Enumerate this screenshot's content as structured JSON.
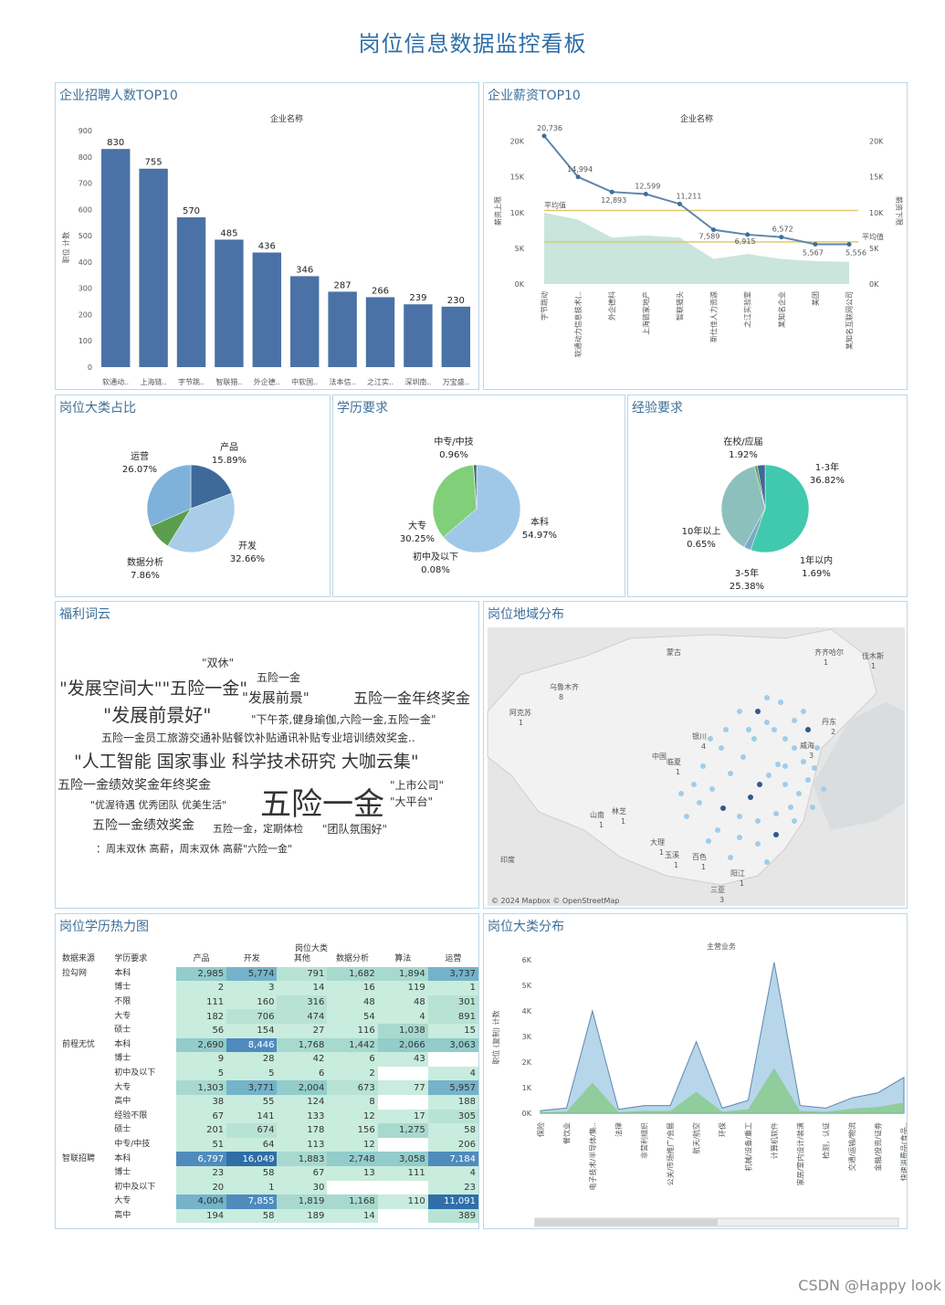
{
  "title": "岗位信息数据监控看板",
  "watermark": "CSDN @Happy look",
  "panels": {
    "top_companies": "企业招聘人数TOP10",
    "salary": "企业薪资TOP10",
    "category_share": "岗位大类占比",
    "education": "学历要求",
    "experience": "经验要求",
    "wordcloud": "福利词云",
    "map": "岗位地域分布",
    "heatmap": "岗位学历热力图",
    "distribution": "岗位大类分布"
  },
  "chart_data": [
    {
      "id": "top_companies",
      "type": "bar",
      "title": "企业招聘人数TOP10",
      "header": "企业名称",
      "ylabel": "职位 计数",
      "ylim": [
        0,
        900
      ],
      "yticks": [
        "900",
        "800",
        "700",
        "600",
        "500",
        "400",
        "300",
        "200",
        "100",
        "0"
      ],
      "categories": [
        "软通动..",
        "上海链..",
        "字节跳..",
        "智联猎..",
        "外企德..",
        "中软国..",
        "法本信..",
        "之江实..",
        "深圳南..",
        "万宝盛.."
      ],
      "values": [
        830,
        755,
        570,
        485,
        436,
        346,
        287,
        266,
        239,
        230
      ],
      "value_labels": [
        "830",
        "755",
        "570",
        "485",
        "436",
        "346",
        "287",
        "266",
        "239",
        "230"
      ]
    },
    {
      "id": "salary",
      "type": "line",
      "title": "企业薪资TOP10",
      "header": "企业名称",
      "ylabel": "薪资上限",
      "ylabel_right": "薪资下限",
      "ylim": [
        0,
        22000
      ],
      "yticks": [
        "20K",
        "15K",
        "10K",
        "5K",
        "0K"
      ],
      "yticks_right": [
        "20K",
        "15K",
        "10K",
        "5K",
        "0K"
      ],
      "categories": [
        "字节跳动",
        "软通动力信息技术(..",
        "外企德科",
        "上海链家地产",
        "智联猎头",
        "新仕佳人力资源",
        "之江实验室",
        "某知名企业",
        "美团",
        "某知名互联网公司"
      ],
      "series": [
        {
          "name": "薪资上限",
          "values": [
            20736,
            14994,
            12893,
            12599,
            11211,
            7589,
            6915,
            6572,
            5567,
            5556
          ],
          "labels": [
            "20,736",
            "14,994",
            "12,893",
            "12,599",
            "11,211",
            "7,589",
            "6,915",
            "6,572",
            "5,567",
            "5,556"
          ]
        },
        {
          "name": "薪资下限",
          "values": [
            10000,
            9000,
            6500,
            6800,
            6500,
            3500,
            4200,
            3500,
            3200,
            3100
          ]
        }
      ],
      "reference_lines": [
        {
          "label": "平均值",
          "value": 10300
        },
        {
          "label": "平均值",
          "value": 5900
        }
      ]
    },
    {
      "id": "category_share",
      "type": "pie",
      "title": "岗位大类占比",
      "labels": [
        "产品",
        "开发",
        "数据分析",
        "运营"
      ],
      "values": [
        15.89,
        32.66,
        7.86,
        26.07
      ],
      "value_labels": [
        "15.89%",
        "32.66%",
        "7.86%",
        "26.07%"
      ]
    },
    {
      "id": "education",
      "type": "pie",
      "title": "学历要求",
      "labels": [
        "本科",
        "大专",
        "初中及以下",
        "中专/中技"
      ],
      "values": [
        54.97,
        30.25,
        0.08,
        0.96
      ],
      "value_labels": [
        "54.97%",
        "30.25%",
        "0.08%",
        "0.96%"
      ]
    },
    {
      "id": "experience",
      "type": "pie",
      "title": "经验要求",
      "labels": [
        "1-3年",
        "1年以内",
        "3-5年",
        "10年以上",
        "在校/应届"
      ],
      "values": [
        36.82,
        1.69,
        25.38,
        0.65,
        1.92
      ],
      "value_labels": [
        "36.82%",
        "1.69%",
        "25.38%",
        "0.65%",
        "1.92%"
      ]
    },
    {
      "id": "distribution",
      "type": "area",
      "title": "岗位大类分布",
      "header": "主营业务",
      "ylabel": "职位 (复制) 计数",
      "ylim": [
        0,
        6000
      ],
      "yticks": [
        "6K",
        "5K",
        "4K",
        "3K",
        "2K",
        "1K",
        "0K"
      ],
      "categories": [
        "保险",
        "餐饮业",
        "电子技术/半导体/集..",
        "法律",
        "非营利组织",
        "公关/市场推广/会展",
        "航天/航空",
        "环保",
        "机械/设备/重工",
        "计算机软件",
        "家居/室内设计/装潢",
        "检测，认证",
        "交通/运输/物流",
        "金融/投资/证券",
        "快速消费品(食品.."
      ],
      "x_labels": [
        "保险",
        "餐饮业",
        "电子技术/半导体/集..",
        "法律",
        "非营利组织",
        "公关/市场推广/会展",
        "航天/航空",
        "环保",
        "机械/设备/重工",
        "计算机软件",
        "家居/室内设计/装潢",
        "检测，认证",
        "交通/运输/物流",
        "金融/投资/证券",
        "快速消费品(食品.."
      ],
      "values": [
        100,
        200,
        4000,
        150,
        300,
        300,
        2800,
        200,
        500,
        5900,
        300,
        200,
        600,
        800,
        1400
      ]
    }
  ],
  "wordcloud": [
    {
      "text": "\"双休\"",
      "color": "#bfe0d6"
    },
    {
      "text": "\"发展空间大\"\"五险一金\"",
      "color": "#8ec4b6"
    },
    {
      "text": "五险一金",
      "color": "#bfe0d6"
    },
    {
      "text": "\"发展前景\"",
      "color": "#a9d2c5"
    },
    {
      "text": "五险一金年终奖金",
      "color": "#9bcab9"
    },
    {
      "text": "\"发展前景好\"",
      "color": "#7fb7a8"
    },
    {
      "text": "\"下午茶,健身瑜伽,六险一金,五险一金\"",
      "color": "#c6e3da"
    },
    {
      "text": "五险一金员工旅游交通补贴餐饮补贴通讯补贴专业培训绩效奖金..",
      "color": "#c6e3da"
    },
    {
      "text": "\"人工智能 国家事业 科学技术研究 大咖云集\"",
      "color": "#6fa99c"
    },
    {
      "text": "五险一金绩效奖金年终奖金",
      "color": "#a9d2c5"
    },
    {
      "text": "\"上市公司\"",
      "color": "#c6e3da"
    },
    {
      "text": "\"优渥待遇 优秀团队 优美生活\"",
      "color": "#c6e3da"
    },
    {
      "text": "五险一金",
      "color": "#3d6f7a"
    },
    {
      "text": "\"大平台\"",
      "color": "#bfe0d6"
    },
    {
      "text": "五险一金绩效奖金",
      "color": "#a9d2c5"
    },
    {
      "text": "五险一金，定期体检",
      "color": "#c6e3da"
    },
    {
      "text": "\"团队氛围好\"",
      "color": "#c6e3da"
    },
    {
      "text": "：周末双休 高薪，周末双休 高薪\"六险一金\"",
      "color": "#c6e3da"
    }
  ],
  "map": {
    "attribution": "© 2024 Mapbox © OpenStreetMap",
    "regions": [
      {
        "name": "蒙古"
      },
      {
        "name": "中国"
      },
      {
        "name": "印度"
      }
    ],
    "cities": [
      {
        "name": "齐齐哈尔",
        "count": "1"
      },
      {
        "name": "佳木斯",
        "count": "1"
      },
      {
        "name": "乌鲁木齐",
        "count": "8"
      },
      {
        "name": "阿克苏",
        "count": "1"
      },
      {
        "name": "丹东",
        "count": "2"
      },
      {
        "name": "银川",
        "count": "4"
      },
      {
        "name": "威海",
        "count": "3"
      },
      {
        "name": "临夏",
        "count": "1"
      },
      {
        "name": "山南",
        "count": "1"
      },
      {
        "name": "林芝",
        "count": "1"
      },
      {
        "name": "大理",
        "count": "1"
      },
      {
        "name": "玉溪",
        "count": "1"
      },
      {
        "name": "百色",
        "count": "1"
      },
      {
        "name": "阳江",
        "count": "1"
      },
      {
        "name": "三亚",
        "count": "3"
      }
    ]
  },
  "heatmap": {
    "group_header": "岗位大类",
    "columns": [
      "数据来源",
      "学历要求",
      "产品",
      "开发",
      "其他",
      "数据分析",
      "算法",
      "运营"
    ],
    "rows": [
      {
        "source": "拉勾网",
        "edu": "本科",
        "vals": [
          "2,985",
          "5,774",
          "791",
          "1,682",
          "1,894",
          "3,737"
        ]
      },
      {
        "source": "",
        "edu": "博士",
        "vals": [
          "2",
          "3",
          "14",
          "16",
          "119",
          "1"
        ]
      },
      {
        "source": "",
        "edu": "不限",
        "vals": [
          "111",
          "160",
          "316",
          "48",
          "48",
          "301"
        ]
      },
      {
        "source": "",
        "edu": "大专",
        "vals": [
          "182",
          "706",
          "474",
          "54",
          "4",
          "891"
        ]
      },
      {
        "source": "",
        "edu": "硕士",
        "vals": [
          "56",
          "154",
          "27",
          "116",
          "1,038",
          "15"
        ]
      },
      {
        "source": "前程无忧",
        "edu": "本科",
        "vals": [
          "2,690",
          "8,446",
          "1,768",
          "1,442",
          "2,066",
          "3,063"
        ]
      },
      {
        "source": "",
        "edu": "博士",
        "vals": [
          "9",
          "28",
          "42",
          "6",
          "43",
          ""
        ]
      },
      {
        "source": "",
        "edu": "初中及以下",
        "vals": [
          "5",
          "5",
          "6",
          "2",
          "",
          "4"
        ]
      },
      {
        "source": "",
        "edu": "大专",
        "vals": [
          "1,303",
          "3,771",
          "2,004",
          "673",
          "77",
          "5,957"
        ]
      },
      {
        "source": "",
        "edu": "高中",
        "vals": [
          "38",
          "55",
          "124",
          "8",
          "",
          "188"
        ]
      },
      {
        "source": "",
        "edu": "经验不限",
        "vals": [
          "67",
          "141",
          "133",
          "12",
          "17",
          "305"
        ]
      },
      {
        "source": "",
        "edu": "硕士",
        "vals": [
          "201",
          "674",
          "178",
          "156",
          "1,275",
          "58"
        ]
      },
      {
        "source": "",
        "edu": "中专/中技",
        "vals": [
          "51",
          "64",
          "113",
          "12",
          "",
          "206"
        ]
      },
      {
        "source": "智联招聘",
        "edu": "本科",
        "vals": [
          "6,797",
          "16,049",
          "1,883",
          "2,748",
          "3,058",
          "7,184"
        ]
      },
      {
        "source": "",
        "edu": "博士",
        "vals": [
          "23",
          "58",
          "67",
          "13",
          "111",
          "4"
        ]
      },
      {
        "source": "",
        "edu": "初中及以下",
        "vals": [
          "20",
          "1",
          "30",
          "",
          "",
          "23"
        ]
      },
      {
        "source": "",
        "edu": "大专",
        "vals": [
          "4,004",
          "7,855",
          "1,819",
          "1,168",
          "110",
          "11,091"
        ]
      },
      {
        "source": "",
        "edu": "高中",
        "vals": [
          "194",
          "58",
          "189",
          "14",
          "",
          "389"
        ]
      }
    ]
  }
}
